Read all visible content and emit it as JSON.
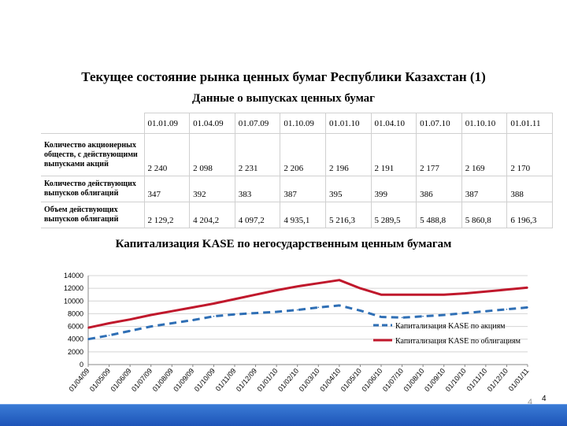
{
  "title": "Текущее состояние рынка ценных бумаг Республики Казахстан (1)",
  "subtitle": "Данные о выпусках ценных бумаг",
  "table": {
    "dates": [
      "01.01.09",
      "01.04.09",
      "01.07.09",
      "01.10.09",
      "01.01.10",
      "01.04.10",
      "01.07.10",
      "01.10.10",
      "01.01.11"
    ],
    "rows": [
      {
        "label": "Количество акционерных обществ, с действующими выпусками акций",
        "values": [
          "2 240",
          "2 098",
          "2 231",
          "2 206",
          "2 196",
          "2 191",
          "2 177",
          "2 169",
          "2 170"
        ]
      },
      {
        "label": "Количество действующих выпусков облигаций",
        "values": [
          "347",
          "392",
          "383",
          "387",
          "395",
          "399",
          "386",
          "387",
          "388"
        ]
      },
      {
        "label": "Объем действующих выпусков облигаций",
        "values": [
          "2 129,2",
          "4 204,2",
          "4 097,2",
          "4 935,1",
          "5 216,3",
          "5 289,5",
          "5 488,8",
          "5 860,8",
          "6 196,3"
        ]
      }
    ]
  },
  "chart_title": "Капитализация KASE по негосударственным ценным бумагам",
  "page_number": "4",
  "chart_data": {
    "type": "line",
    "categories": [
      "01/04/09",
      "01/05/09",
      "01/06/09",
      "01/07/09",
      "01/08/09",
      "01/09/09",
      "01/10/09",
      "01/11/09",
      "01/12/09",
      "01/01/10",
      "01/02/10",
      "01/03/10",
      "01/04/10",
      "01/05/10",
      "01/06/10",
      "01/07/10",
      "01/08/10",
      "01/09/10",
      "01/10/10",
      "01/11/10",
      "01/12/10",
      "01/01/11"
    ],
    "ylim": [
      0,
      14000
    ],
    "yticks": [
      0,
      2000,
      4000,
      6000,
      8000,
      10000,
      12000,
      14000
    ],
    "legend_position": "right",
    "series": [
      {
        "name": "Капитализация KASE по акциям",
        "color": "#2f6fb5",
        "style": "dashed",
        "values": [
          4000,
          4600,
          5300,
          6000,
          6500,
          7000,
          7600,
          7900,
          8100,
          8300,
          8600,
          9000,
          9300,
          8500,
          7500,
          7400,
          7600,
          7800,
          8100,
          8400,
          8700,
          9000
        ]
      },
      {
        "name": "Капитализация KASE по облигациям",
        "color": "#c0182c",
        "style": "solid",
        "values": [
          5800,
          6500,
          7100,
          7800,
          8400,
          9000,
          9600,
          10300,
          11000,
          11700,
          12300,
          12800,
          13300,
          12000,
          11000,
          11000,
          11000,
          11000,
          11200,
          11500,
          11800,
          12100
        ]
      }
    ]
  }
}
